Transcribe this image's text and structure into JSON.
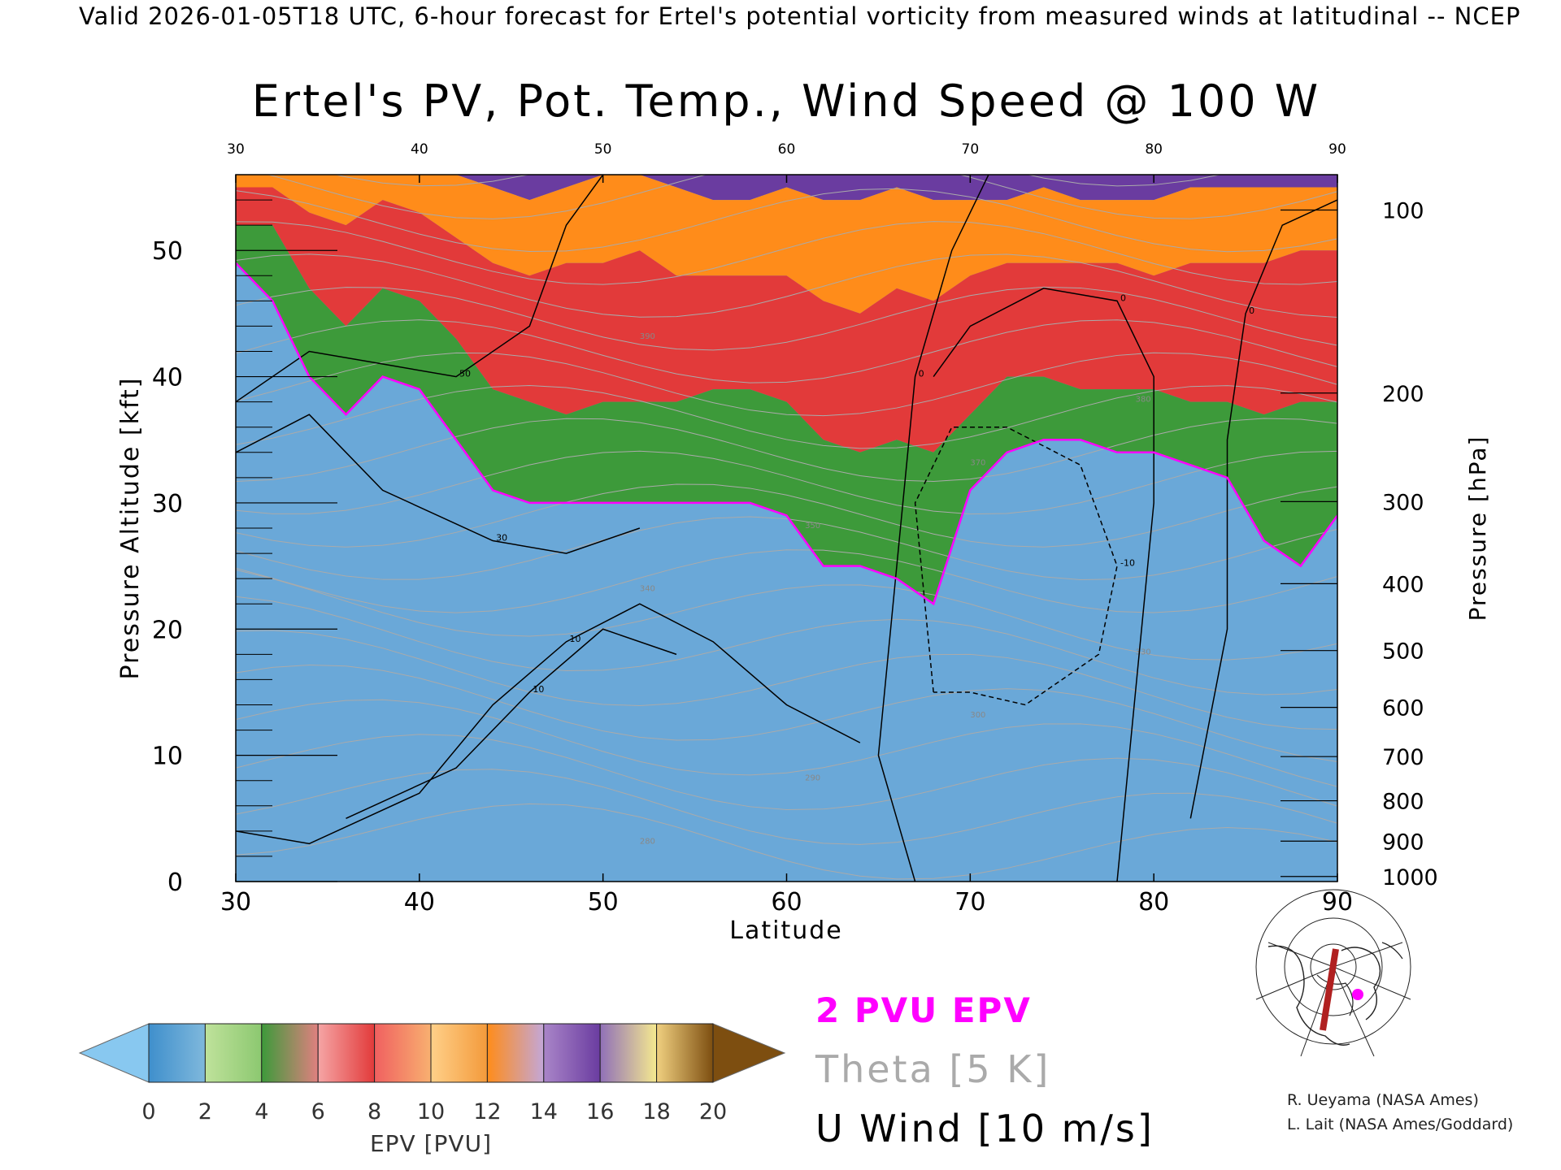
{
  "header": {
    "valid_line": "Valid 2026-01-05T18 UTC, 6-hour forecast for Ertel's potential vorticity from measured winds at latitudinal -- NCEP"
  },
  "chart_data": {
    "type": "heatmap",
    "title": "Ertel's PV, Pot. Temp., Wind Speed @ 100 W",
    "xlabel": "Latitude",
    "ylabel_left": "Pressure Altitude [kft]",
    "ylabel_right": "Pressure [hPa]",
    "xlim": [
      30,
      90
    ],
    "ylim": [
      0,
      56
    ],
    "x_ticks": [
      "30",
      "40",
      "50",
      "60",
      "70",
      "80",
      "90"
    ],
    "y_ticks": [
      "0",
      "10",
      "20",
      "30",
      "40",
      "50"
    ],
    "pressure_ticks": [
      {
        "label": "100",
        "kft": 53.2
      },
      {
        "label": "200",
        "kft": 38.7
      },
      {
        "label": "300",
        "kft": 30.1
      },
      {
        "label": "400",
        "kft": 23.6
      },
      {
        "label": "500",
        "kft": 18.3
      },
      {
        "label": "600",
        "kft": 13.8
      },
      {
        "label": "700",
        "kft": 9.9
      },
      {
        "label": "800",
        "kft": 6.4
      },
      {
        "label": "900",
        "kft": 3.2
      },
      {
        "label": "1000",
        "kft": 0.4
      }
    ],
    "pv_layers": {
      "latitudes": [
        30,
        32,
        34,
        36,
        38,
        40,
        42,
        44,
        46,
        48,
        50,
        52,
        54,
        56,
        58,
        60,
        62,
        64,
        66,
        68,
        70,
        72,
        74,
        76,
        78,
        80,
        82,
        84,
        86,
        88,
        90
      ],
      "tropopause_2pvu_kft": [
        49,
        46,
        40,
        37,
        40,
        39,
        35,
        31,
        30,
        30,
        30,
        30,
        30,
        30,
        30,
        29,
        25,
        25,
        24,
        22,
        31,
        34,
        35,
        35,
        34,
        34,
        33,
        32,
        27,
        25,
        29
      ],
      "green_top_kft": [
        52,
        52,
        47,
        44,
        47,
        46,
        43,
        39,
        38,
        37,
        38,
        38,
        38,
        39,
        39,
        38,
        35,
        34,
        35,
        34,
        37,
        40,
        40,
        39,
        39,
        39,
        38,
        38,
        37,
        38,
        38
      ],
      "red_top_kft": [
        55,
        55,
        53,
        52,
        54,
        53,
        51,
        49,
        48,
        49,
        49,
        50,
        48,
        48,
        48,
        48,
        46,
        45,
        47,
        46,
        48,
        49,
        49,
        49,
        49,
        48,
        49,
        49,
        49,
        50,
        50
      ],
      "orange_top_kft": [
        56,
        56,
        56,
        56,
        56,
        56,
        56,
        55,
        54,
        55,
        56,
        56,
        55,
        54,
        54,
        55,
        54,
        54,
        55,
        54,
        54,
        54,
        55,
        54,
        54,
        54,
        55,
        55,
        55,
        55,
        55
      ]
    },
    "u_wind_contours": [
      {
        "label": "0",
        "style": "solid",
        "points": [
          [
            67,
            0
          ],
          [
            65,
            10
          ],
          [
            66,
            25
          ],
          [
            67,
            40
          ],
          [
            69,
            50
          ],
          [
            71,
            56
          ]
        ]
      },
      {
        "label": "0",
        "style": "solid",
        "points": [
          [
            78,
            0
          ],
          [
            79,
            15
          ],
          [
            80,
            30
          ],
          [
            80,
            40
          ],
          [
            78,
            46
          ],
          [
            74,
            47
          ],
          [
            70,
            44
          ],
          [
            68,
            40
          ]
        ]
      },
      {
        "label": "0",
        "style": "solid",
        "points": [
          [
            82,
            5
          ],
          [
            84,
            20
          ],
          [
            84,
            35
          ],
          [
            85,
            45
          ],
          [
            87,
            52
          ],
          [
            90,
            54
          ]
        ]
      },
      {
        "label": "10",
        "style": "solid",
        "points": [
          [
            30,
            4
          ],
          [
            34,
            3
          ],
          [
            40,
            7
          ],
          [
            44,
            14
          ],
          [
            48,
            19
          ],
          [
            52,
            22
          ],
          [
            56,
            19
          ],
          [
            60,
            14
          ],
          [
            64,
            11
          ]
        ]
      },
      {
        "label": "10",
        "style": "solid",
        "points": [
          [
            36,
            5
          ],
          [
            42,
            9
          ],
          [
            46,
            15
          ],
          [
            50,
            20
          ],
          [
            54,
            18
          ]
        ]
      },
      {
        "label": "30",
        "style": "solid",
        "points": [
          [
            30,
            34
          ],
          [
            34,
            37
          ],
          [
            38,
            31
          ],
          [
            44,
            27
          ],
          [
            48,
            26
          ],
          [
            52,
            28
          ]
        ]
      },
      {
        "label": "50",
        "style": "solid",
        "points": [
          [
            30,
            38
          ],
          [
            34,
            42
          ],
          [
            38,
            41
          ],
          [
            42,
            40
          ],
          [
            46,
            44
          ],
          [
            48,
            52
          ],
          [
            50,
            56
          ]
        ]
      },
      {
        "label": "-10",
        "style": "dashed",
        "points": [
          [
            68,
            15
          ],
          [
            67,
            30
          ],
          [
            69,
            36
          ],
          [
            72,
            36
          ],
          [
            76,
            33
          ],
          [
            78,
            25
          ],
          [
            77,
            18
          ],
          [
            73,
            14
          ],
          [
            70,
            15
          ],
          [
            68,
            15
          ]
        ]
      }
    ],
    "theta_labels": [
      "280",
      "290",
      "300",
      "330",
      "340",
      "350",
      "370",
      "380",
      "390"
    ],
    "colorbar": {
      "label": "EPV [PVU]",
      "ticks": [
        "0",
        "2",
        "4",
        "6",
        "8",
        "10",
        "12",
        "14",
        "16",
        "18",
        "20"
      ],
      "colors": [
        "#88c8f0",
        "#3f8fcc",
        "#7fb8dc",
        "#bfe29b",
        "#8cc870",
        "#3d9a3a",
        "#e08080",
        "#f5a5a5",
        "#e23a3a",
        "#f06060",
        "#f8b070",
        "#ffd089",
        "#f39a3b",
        "#ff8c1a",
        "#c3a7d8",
        "#a985c8",
        "#6a3ca0",
        "#9070b8",
        "#f5e98f",
        "#f0d080",
        "#7d4e10"
      ]
    },
    "legend": {
      "pvu_line": "2 PVU EPV",
      "theta": "Theta [5 K]",
      "uwind": "U Wind [10 m/s]",
      "pvu_color": "#ff00ff",
      "theta_color": "#aaaaaa"
    }
  },
  "credits": {
    "line1": "R. Ueyama (NASA Ames)",
    "line2": "L. Lait (NASA Ames/Goddard)"
  },
  "colors": {
    "marker": "#ff00ff",
    "section_line": "#b02020"
  }
}
